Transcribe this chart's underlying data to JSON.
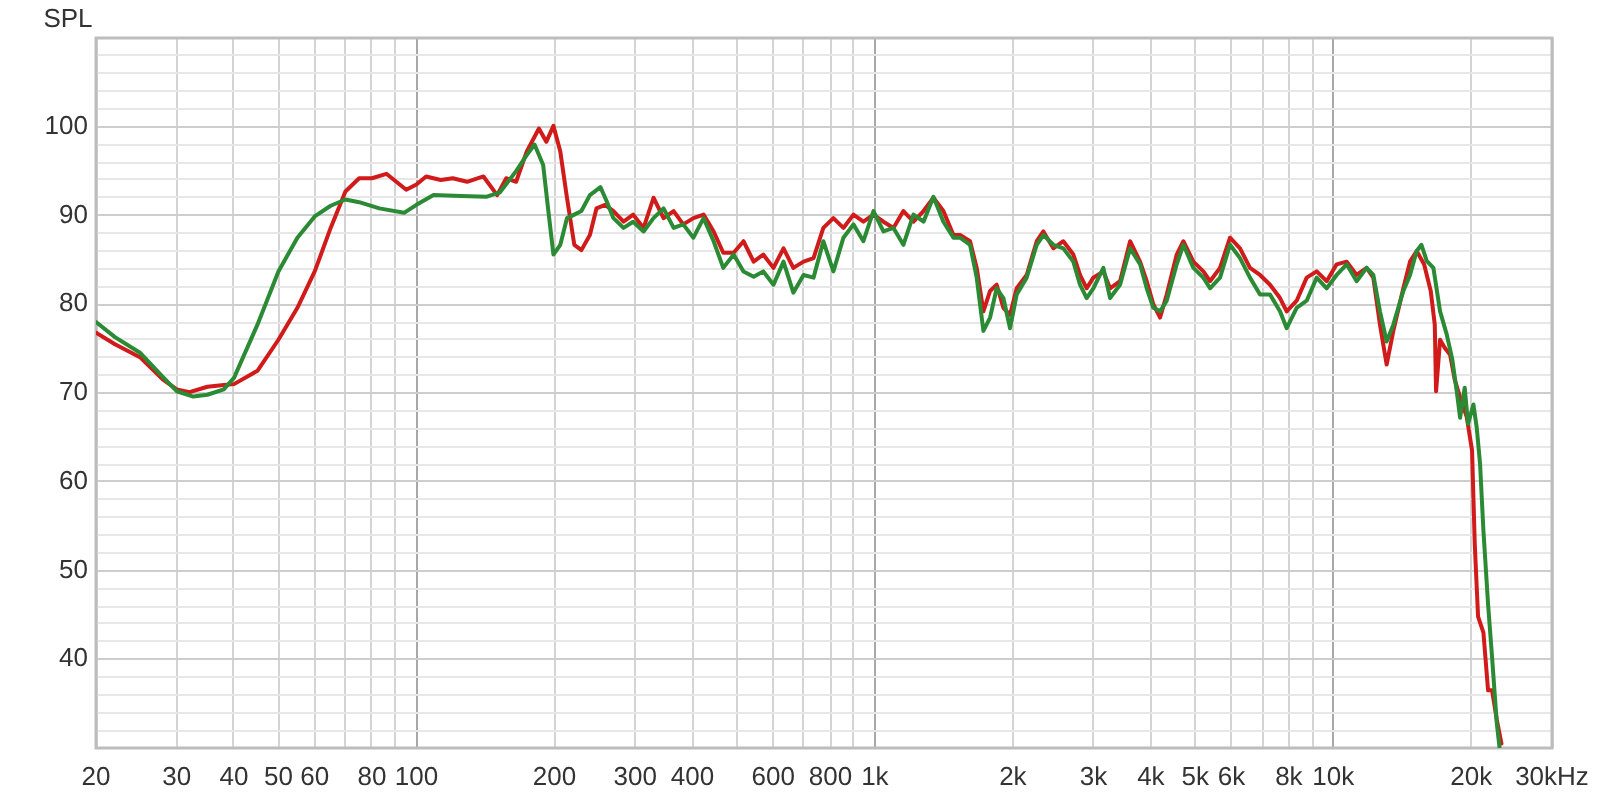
{
  "chart_data": {
    "type": "line",
    "log": "x",
    "grid": true,
    "ylabel": "SPL",
    "xlabel": "Hz",
    "xlim": [
      20,
      30000
    ],
    "ylim": [
      30,
      110
    ],
    "xticks": [
      20,
      30,
      40,
      50,
      60,
      {
        "value": 70,
        "label": null
      },
      80,
      {
        "value": 90,
        "label": null
      },
      100,
      200,
      300,
      400,
      {
        "value": 500,
        "label": null
      },
      600,
      {
        "value": 700,
        "label": null
      },
      800,
      {
        "value": 900,
        "label": null
      },
      {
        "value": 1000,
        "label": "1k"
      },
      {
        "value": 2000,
        "label": "2k"
      },
      {
        "value": 3000,
        "label": "3k"
      },
      {
        "value": 4000,
        "label": "4k"
      },
      {
        "value": 5000,
        "label": "5k"
      },
      {
        "value": 6000,
        "label": "6k"
      },
      {
        "value": 7000,
        "label": null
      },
      {
        "value": 8000,
        "label": "8k"
      },
      {
        "value": 9000,
        "label": null
      },
      {
        "value": 10000,
        "label": "10k"
      },
      {
        "value": 20000,
        "label": "20k"
      },
      {
        "value": 30000,
        "label": "30k"
      }
    ],
    "yticks": [
      {
        "value": 32,
        "label": null
      },
      {
        "value": 34,
        "label": null
      },
      {
        "value": 36,
        "label": null
      },
      {
        "value": 38,
        "label": null
      },
      40,
      {
        "value": 42,
        "label": null
      },
      {
        "value": 44,
        "label": null
      },
      {
        "value": 46,
        "label": null
      },
      {
        "value": 48,
        "label": null
      },
      50,
      {
        "value": 52,
        "label": null
      },
      {
        "value": 54,
        "label": null
      },
      {
        "value": 56,
        "label": null
      },
      {
        "value": 58,
        "label": null
      },
      60,
      {
        "value": 62,
        "label": null
      },
      {
        "value": 64,
        "label": null
      },
      {
        "value": 66,
        "label": null
      },
      {
        "value": 68,
        "label": null
      },
      70,
      {
        "value": 72,
        "label": null
      },
      {
        "value": 74,
        "label": null
      },
      {
        "value": 76,
        "label": null
      },
      {
        "value": 78,
        "label": null
      },
      80,
      {
        "value": 82,
        "label": null
      },
      {
        "value": 84,
        "label": null
      },
      {
        "value": 86,
        "label": null
      },
      {
        "value": 88,
        "label": null
      },
      90,
      {
        "value": 92,
        "label": null
      },
      {
        "value": 94,
        "label": null
      },
      {
        "value": 96,
        "label": null
      },
      {
        "value": 98,
        "label": null
      },
      100,
      {
        "value": 102,
        "label": null
      },
      {
        "value": 104,
        "label": null
      },
      {
        "value": 106,
        "label": null
      },
      {
        "value": 108,
        "label": null
      }
    ],
    "series": [
      {
        "color": "#d11a1a",
        "x": [
          20,
          22,
          25,
          28,
          30,
          32,
          35,
          38,
          40,
          45,
          50,
          55,
          60,
          65,
          70,
          75,
          80,
          86,
          95,
          100,
          105,
          113,
          120,
          129,
          140,
          150,
          157,
          165,
          174,
          185,
          192,
          199,
          206,
          213,
          221,
          229,
          239,
          247,
          258,
          269,
          283,
          297,
          313,
          329,
          346,
          364,
          382,
          402,
          423,
          445,
          467,
          492,
          517,
          544,
          571,
          601,
          632,
          664,
          699,
          735,
          772,
          812,
          854,
          898,
          944,
          993,
          1044,
          1098,
          1154,
          1214,
          1277,
          1342,
          1411,
          1484,
          1534,
          1613,
          1668,
          1725,
          1784,
          1844,
          1907,
          1972,
          2039,
          2144,
          2255,
          2331,
          2451,
          2577,
          2710,
          2802,
          2898,
          2997,
          3151,
          3259,
          3427,
          3604,
          3789,
          3918,
          4050,
          4190,
          4332,
          4555,
          4710,
          4952,
          5207,
          5384,
          5662,
          5953,
          6260,
          6581,
          6922,
          7278,
          7652,
          7914,
          8321,
          8750,
          9201,
          9673,
          10172,
          10695,
          11245,
          11823,
          12227,
          12643,
          13075,
          13521,
          14218,
          14703,
          15205,
          15780,
          16316,
          16650,
          16758,
          17098,
          17500,
          17984,
          18405,
          18907,
          19548,
          20080,
          20352,
          20695,
          21258,
          21760,
          22204,
          22733,
          23276
        ],
        "values": [
          76.8,
          75.5,
          74.0,
          71.5,
          70.4,
          70.1,
          70.7,
          70.9,
          71.0,
          72.5,
          76.0,
          79.6,
          83.7,
          88.6,
          92.7,
          94.2,
          94.2,
          94.7,
          92.9,
          93.5,
          94.4,
          94.0,
          94.2,
          93.8,
          94.4,
          92.3,
          94.2,
          93.8,
          97.2,
          99.8,
          98.3,
          100.1,
          97.2,
          92.0,
          86.7,
          86.1,
          87.8,
          90.8,
          91.2,
          90.5,
          89.3,
          90.1,
          88.6,
          92.0,
          89.7,
          90.5,
          89.0,
          89.7,
          90.1,
          88.2,
          85.8,
          85.8,
          87.1,
          84.8,
          85.6,
          84.1,
          86.3,
          84.1,
          84.8,
          85.2,
          88.6,
          89.7,
          88.6,
          90.1,
          89.3,
          90.1,
          89.3,
          88.6,
          90.5,
          89.3,
          90.5,
          92.0,
          90.5,
          87.8,
          87.8,
          87.1,
          84.1,
          79.2,
          81.5,
          82.2,
          79.6,
          78.8,
          81.8,
          83.3,
          87.1,
          88.2,
          86.3,
          87.1,
          85.6,
          83.3,
          81.8,
          83.0,
          83.7,
          81.8,
          82.6,
          87.1,
          84.8,
          82.6,
          80.0,
          78.5,
          81.1,
          85.6,
          87.1,
          84.8,
          83.7,
          82.6,
          84.1,
          87.5,
          86.3,
          84.1,
          83.3,
          82.2,
          80.7,
          79.2,
          80.4,
          83.0,
          83.7,
          82.6,
          84.5,
          84.8,
          83.3,
          84.1,
          83.0,
          77.7,
          73.2,
          77.0,
          81.8,
          84.8,
          86.0,
          84.5,
          81.5,
          77.7,
          70.2,
          76.0,
          75.1,
          74.3,
          71.5,
          69.5,
          67.3,
          63.5,
          53.0,
          44.8,
          43.0,
          36.5,
          36.5,
          33.2,
          30.5
        ]
      },
      {
        "color": "#2b8a34",
        "x": [
          20,
          22,
          25,
          28,
          30,
          32.6,
          35,
          38,
          40,
          45,
          50,
          55,
          60,
          65,
          70,
          75,
          83,
          94,
          100,
          109,
          125,
          142,
          152,
          165,
          174,
          181,
          189,
          194,
          199,
          206,
          213,
          221,
          229,
          239,
          252,
          260,
          269,
          283,
          297,
          313,
          329,
          346,
          364,
          382,
          402,
          423,
          445,
          467,
          492,
          517,
          544,
          571,
          601,
          632,
          664,
          699,
          735,
          772,
          812,
          854,
          898,
          944,
          993,
          1044,
          1098,
          1154,
          1214,
          1277,
          1342,
          1411,
          1484,
          1534,
          1613,
          1668,
          1725,
          1784,
          1844,
          1907,
          1972,
          2039,
          2144,
          2255,
          2331,
          2451,
          2577,
          2710,
          2802,
          2898,
          2997,
          3151,
          3259,
          3427,
          3604,
          3789,
          3918,
          4050,
          4190,
          4332,
          4555,
          4710,
          4952,
          5207,
          5384,
          5662,
          5953,
          6260,
          6581,
          6922,
          7278,
          7652,
          7914,
          8321,
          8750,
          9201,
          9673,
          10172,
          10695,
          11245,
          11823,
          12227,
          12643,
          13075,
          13521,
          14218,
          14703,
          15205,
          15570,
          15988,
          16535,
          17098,
          17678,
          18164,
          18592,
          18907,
          19352,
          19680,
          20216,
          20555,
          20904,
          21258,
          21760,
          22204,
          22733,
          23043
        ],
        "values": [
          78.0,
          76.3,
          74.5,
          71.8,
          70.2,
          69.6,
          69.8,
          70.4,
          71.7,
          77.7,
          83.7,
          87.5,
          89.9,
          91.1,
          91.8,
          91.5,
          90.8,
          90.3,
          91.2,
          92.3,
          92.2,
          92.1,
          92.6,
          95.0,
          96.8,
          98.0,
          95.7,
          90.5,
          85.6,
          86.7,
          89.7,
          90.1,
          90.5,
          92.3,
          93.2,
          91.6,
          89.7,
          88.6,
          89.3,
          88.2,
          89.7,
          90.8,
          88.6,
          89.0,
          87.5,
          89.7,
          87.1,
          84.1,
          85.6,
          83.7,
          83.1,
          83.7,
          82.2,
          84.8,
          81.3,
          83.3,
          83.0,
          87.1,
          83.7,
          87.5,
          89.0,
          87.1,
          90.5,
          88.2,
          88.6,
          86.7,
          90.1,
          89.3,
          92.1,
          89.3,
          87.5,
          87.5,
          86.7,
          83.0,
          77.0,
          78.5,
          81.8,
          80.7,
          77.3,
          81.1,
          83.0,
          86.7,
          87.8,
          86.7,
          86.3,
          84.8,
          82.2,
          80.7,
          81.8,
          84.1,
          80.7,
          82.2,
          86.3,
          84.5,
          81.8,
          79.6,
          79.2,
          80.4,
          84.5,
          86.7,
          84.1,
          83.0,
          81.8,
          83.0,
          86.7,
          85.2,
          83.0,
          81.1,
          81.1,
          79.2,
          77.3,
          79.6,
          80.4,
          83.0,
          81.8,
          83.3,
          84.5,
          82.6,
          84.1,
          83.3,
          79.2,
          75.8,
          77.7,
          81.5,
          83.3,
          86.0,
          86.7,
          84.9,
          84.1,
          79.2,
          76.6,
          73.9,
          70.2,
          67.2,
          70.6,
          66.5,
          68.7,
          66.1,
          62.0,
          54.5,
          46.2,
          40.2,
          32.8,
          30.1
        ]
      }
    ]
  }
}
